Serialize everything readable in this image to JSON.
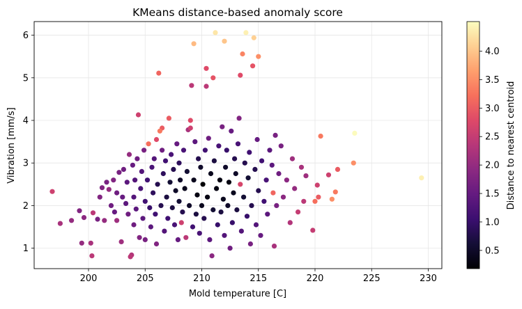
{
  "chart_data": {
    "type": "scatter",
    "title": "KMeans distance-based anomaly score",
    "xlabel": "Mold temperature [C]",
    "ylabel": "Vibration [mm/s]",
    "xlim": [
      195.2,
      231.2
    ],
    "ylim": [
      0.52,
      6.32
    ],
    "xticks": [
      200,
      205,
      210,
      215,
      220,
      225,
      230
    ],
    "yticks": [
      1,
      2,
      3,
      4,
      5,
      6
    ],
    "grid": true,
    "colorbar": {
      "label": "Distance to nearest centroid",
      "range": [
        0.18,
        4.52
      ],
      "ticks": [
        0.5,
        1.0,
        1.5,
        2.0,
        2.5,
        3.0,
        3.5,
        4.0
      ],
      "tick_labels": [
        "0.5",
        "1.0",
        "1.5",
        "2.0",
        "2.5",
        "3.0",
        "3.5",
        "4.0"
      ],
      "colormap": "magma"
    },
    "points": [
      [
        196.8,
        2.33,
        2.6
      ],
      [
        197.5,
        1.58,
        2.2
      ],
      [
        198.5,
        1.65,
        2.0
      ],
      [
        199.2,
        1.88,
        1.8
      ],
      [
        199.4,
        1.12,
        2.0
      ],
      [
        199.6,
        1.72,
        1.9
      ],
      [
        200.2,
        1.12,
        2.2
      ],
      [
        200.3,
        0.82,
        2.4
      ],
      [
        200.4,
        1.83,
        2.4
      ],
      [
        200.8,
        1.68,
        1.7
      ],
      [
        201.0,
        2.2,
        1.8
      ],
      [
        201.2,
        2.42,
        1.8
      ],
      [
        201.4,
        1.65,
        2.0
      ],
      [
        201.6,
        2.55,
        1.7
      ],
      [
        201.8,
        2.38,
        2.0
      ],
      [
        202.0,
        2.0,
        1.6
      ],
      [
        202.2,
        2.6,
        1.8
      ],
      [
        202.3,
        1.85,
        1.5
      ],
      [
        202.5,
        1.65,
        2.1
      ],
      [
        202.5,
        2.3,
        1.6
      ],
      [
        202.7,
        2.78,
        1.7
      ],
      [
        202.9,
        1.15,
        2.1
      ],
      [
        203.0,
        2.2,
        1.5
      ],
      [
        203.1,
        2.85,
        1.6
      ],
      [
        203.3,
        2.05,
        1.4
      ],
      [
        203.4,
        2.55,
        1.4
      ],
      [
        203.5,
        1.8,
        1.6
      ],
      [
        203.6,
        3.2,
        2.0
      ],
      [
        203.7,
        0.8,
        2.4
      ],
      [
        203.8,
        0.84,
        2.3
      ],
      [
        203.9,
        2.95,
        1.5
      ],
      [
        204.0,
        1.55,
        1.6
      ],
      [
        204.0,
        2.2,
        1.3
      ],
      [
        204.1,
        2.6,
        1.3
      ],
      [
        204.2,
        1.92,
        1.4
      ],
      [
        204.3,
        3.1,
        1.6
      ],
      [
        204.4,
        4.13,
        2.6
      ],
      [
        204.5,
        1.25,
        1.8
      ],
      [
        204.6,
        2.4,
        1.2
      ],
      [
        204.7,
        2.8,
        1.3
      ],
      [
        204.8,
        1.7,
        1.4
      ],
      [
        204.9,
        3.3,
        1.7
      ],
      [
        205.0,
        2.1,
        1.1
      ],
      [
        205.0,
        1.2,
        1.7
      ],
      [
        205.2,
        2.6,
        1.1
      ],
      [
        205.3,
        3.45,
        3.2
      ],
      [
        205.4,
        1.95,
        1.0
      ],
      [
        205.5,
        1.5,
        1.4
      ],
      [
        205.6,
        2.9,
        1.2
      ],
      [
        205.7,
        2.3,
        0.9
      ],
      [
        205.8,
        3.1,
        1.3
      ],
      [
        205.9,
        1.8,
        1.1
      ],
      [
        206.0,
        3.55,
        2.8
      ],
      [
        206.0,
        1.1,
        1.8
      ],
      [
        206.1,
        2.5,
        0.8
      ],
      [
        206.2,
        5.11,
        3.1
      ],
      [
        206.3,
        3.75,
        3.3
      ],
      [
        206.4,
        2.0,
        0.8
      ],
      [
        206.5,
        3.82,
        3.0
      ],
      [
        206.5,
        3.3,
        1.6
      ],
      [
        206.6,
        2.75,
        0.9
      ],
      [
        206.7,
        1.4,
        1.3
      ],
      [
        206.8,
        3.05,
        1.1
      ],
      [
        206.9,
        2.2,
        0.7
      ],
      [
        207.0,
        1.7,
        1.1
      ],
      [
        207.1,
        4.05,
        3.0
      ],
      [
        207.2,
        2.55,
        0.6
      ],
      [
        207.3,
        3.2,
        1.2
      ],
      [
        207.4,
        1.95,
        0.7
      ],
      [
        207.5,
        2.85,
        0.8
      ],
      [
        207.6,
        1.55,
        1.2
      ],
      [
        207.7,
        2.35,
        0.5
      ],
      [
        207.8,
        3.45,
        1.5
      ],
      [
        207.9,
        1.2,
        1.5
      ],
      [
        208.0,
        2.1,
        0.6
      ],
      [
        208.0,
        3.0,
        0.9
      ],
      [
        208.1,
        2.6,
        0.5
      ],
      [
        208.2,
        1.6,
        2.6
      ],
      [
        208.3,
        1.85,
        0.8
      ],
      [
        208.4,
        3.3,
        1.2
      ],
      [
        208.5,
        2.4,
        0.4
      ],
      [
        208.6,
        1.25,
        2.4
      ],
      [
        208.7,
        2.8,
        0.6
      ],
      [
        208.8,
        3.78,
        2.2
      ],
      [
        208.9,
        2.0,
        0.5
      ],
      [
        209.0,
        3.82,
        2.6
      ],
      [
        209.0,
        4.0,
        2.8
      ],
      [
        209.1,
        4.82,
        2.4
      ],
      [
        209.2,
        1.5,
        1.1
      ],
      [
        209.3,
        5.8,
        3.9
      ],
      [
        209.3,
        2.6,
        0.4
      ],
      [
        209.4,
        3.5,
        1.4
      ],
      [
        209.5,
        1.8,
        0.7
      ],
      [
        209.6,
        2.25,
        0.3
      ],
      [
        209.7,
        3.1,
        0.8
      ],
      [
        209.8,
        1.35,
        1.2
      ],
      [
        209.9,
        2.9,
        0.5
      ],
      [
        210.0,
        2.0,
        0.4
      ],
      [
        210.1,
        2.5,
        0.2
      ],
      [
        210.2,
        1.7,
        0.8
      ],
      [
        210.3,
        3.3,
        1.1
      ],
      [
        210.4,
        4.8,
        2.4
      ],
      [
        210.4,
        5.22,
        2.8
      ],
      [
        210.5,
        2.2,
        0.3
      ],
      [
        210.6,
        3.58,
        1.6
      ],
      [
        210.7,
        1.2,
        1.4
      ],
      [
        210.8,
        2.75,
        0.4
      ],
      [
        210.9,
        0.82,
        1.9
      ],
      [
        211.0,
        1.9,
        0.6
      ],
      [
        211.0,
        5.0,
        2.9
      ],
      [
        211.1,
        3.05,
        0.7
      ],
      [
        211.2,
        6.06,
        4.3
      ],
      [
        211.3,
        2.4,
        0.3
      ],
      [
        211.4,
        1.55,
        1.0
      ],
      [
        211.5,
        3.4,
        1.2
      ],
      [
        211.6,
        2.6,
        0.3
      ],
      [
        211.7,
        1.85,
        0.7
      ],
      [
        211.8,
        3.85,
        1.7
      ],
      [
        211.9,
        2.15,
        0.4
      ],
      [
        212.0,
        5.86,
        4.0
      ],
      [
        212.0,
        1.3,
        1.3
      ],
      [
        212.1,
        2.9,
        0.5
      ],
      [
        212.2,
        3.3,
        1.0
      ],
      [
        212.3,
        2.0,
        0.5
      ],
      [
        212.4,
        2.55,
        0.3
      ],
      [
        212.5,
        1.0,
        1.6
      ],
      [
        212.6,
        3.75,
        1.5
      ],
      [
        212.7,
        1.6,
        1.0
      ],
      [
        212.8,
        2.3,
        0.4
      ],
      [
        212.9,
        3.1,
        0.8
      ],
      [
        213.0,
        2.75,
        0.5
      ],
      [
        213.1,
        1.9,
        0.7
      ],
      [
        213.2,
        3.45,
        1.2
      ],
      [
        213.3,
        4.05,
        1.8
      ],
      [
        213.4,
        5.06,
        2.8
      ],
      [
        213.4,
        2.5,
        2.7
      ],
      [
        213.5,
        1.4,
        1.3
      ],
      [
        213.6,
        5.56,
        3.4
      ],
      [
        213.7,
        2.2,
        0.6
      ],
      [
        213.8,
        3.0,
        0.8
      ],
      [
        213.9,
        6.06,
        4.4
      ],
      [
        214.0,
        1.75,
        1.0
      ],
      [
        214.1,
        2.65,
        0.6
      ],
      [
        214.2,
        3.25,
        1.1
      ],
      [
        214.3,
        1.1,
        1.7
      ],
      [
        214.4,
        2.0,
        0.8
      ],
      [
        214.5,
        5.28,
        2.9
      ],
      [
        214.6,
        5.94,
        4.1
      ],
      [
        214.7,
        2.85,
        0.8
      ],
      [
        214.8,
        1.55,
        1.3
      ],
      [
        214.9,
        3.55,
        1.5
      ],
      [
        215.0,
        5.5,
        3.5
      ],
      [
        215.0,
        2.35,
        0.8
      ],
      [
        215.2,
        1.3,
        1.5
      ],
      [
        215.3,
        3.05,
        1.1
      ],
      [
        215.5,
        2.1,
        1.1
      ],
      [
        215.7,
        2.6,
        1.2
      ],
      [
        215.8,
        1.8,
        1.4
      ],
      [
        216.0,
        3.3,
        1.4
      ],
      [
        216.2,
        2.95,
        1.4
      ],
      [
        216.3,
        2.3,
        3.1
      ],
      [
        216.4,
        1.05,
        2.2
      ],
      [
        216.5,
        3.65,
        1.7
      ],
      [
        216.6,
        2.0,
        1.7
      ],
      [
        216.8,
        2.75,
        1.6
      ],
      [
        217.0,
        3.4,
        1.7
      ],
      [
        217.2,
        2.2,
        1.9
      ],
      [
        217.5,
        2.6,
        1.9
      ],
      [
        217.8,
        1.6,
        2.3
      ],
      [
        218.0,
        3.1,
        2.1
      ],
      [
        218.2,
        2.4,
        2.0
      ],
      [
        218.5,
        1.85,
        2.5
      ],
      [
        218.8,
        2.9,
        2.2
      ],
      [
        219.0,
        2.1,
        2.4
      ],
      [
        219.2,
        2.7,
        2.1
      ],
      [
        219.8,
        1.42,
        2.5
      ],
      [
        220.0,
        2.1,
        3.2
      ],
      [
        220.2,
        2.48,
        2.6
      ],
      [
        220.3,
        2.2,
        3.0
      ],
      [
        220.5,
        3.63,
        3.3
      ],
      [
        221.2,
        2.72,
        2.6
      ],
      [
        221.5,
        2.15,
        3.5
      ],
      [
        221.8,
        2.32,
        3.3
      ],
      [
        222.0,
        2.85,
        3.0
      ],
      [
        223.4,
        3.0,
        3.5
      ],
      [
        223.5,
        3.7,
        4.5
      ],
      [
        229.4,
        2.65,
        4.4
      ]
    ]
  }
}
